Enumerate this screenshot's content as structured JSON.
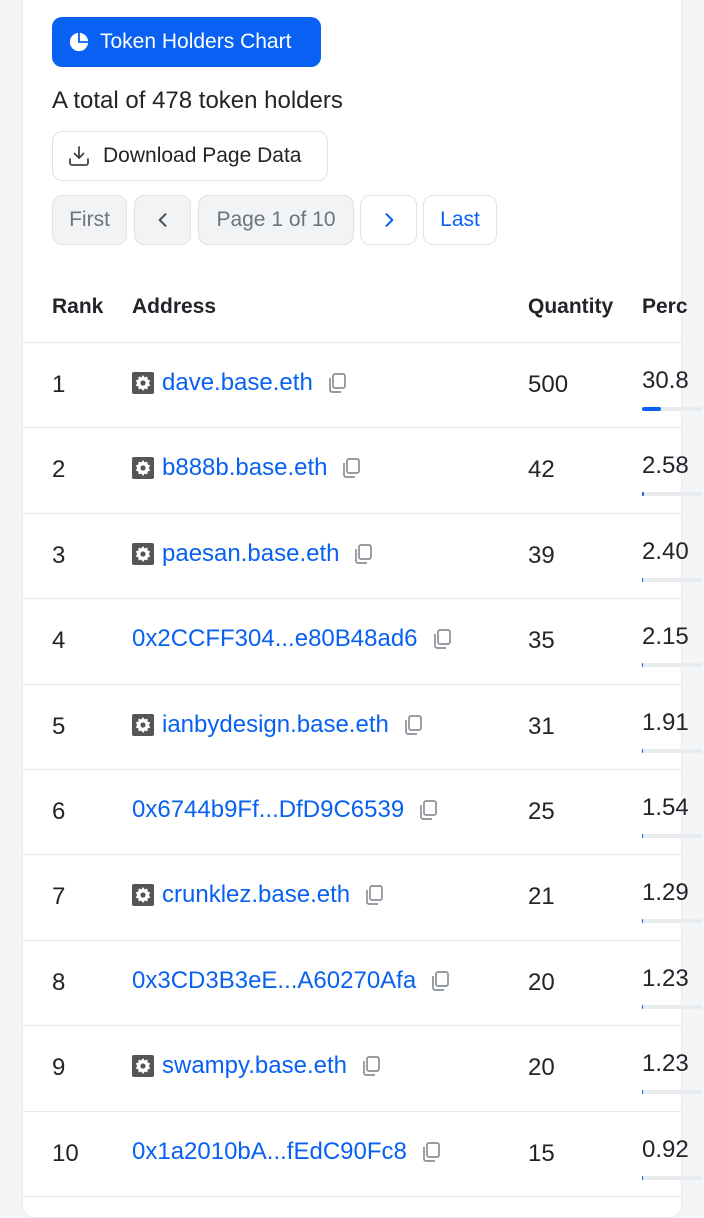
{
  "header": {
    "chart_button_label": "Token Holders Chart",
    "total_text": "A total of 478 token holders",
    "download_label": "Download Page Data"
  },
  "pagination": {
    "first": "First",
    "page_info": "Page 1 of 10",
    "last": "Last"
  },
  "table": {
    "columns": [
      "Rank",
      "Address",
      "Quantity",
      "Perc"
    ],
    "rows": [
      {
        "rank": "1",
        "address": "dave.base.eth",
        "ens": true,
        "quantity": "500",
        "percent": "30.8",
        "fill": 0.308
      },
      {
        "rank": "2",
        "address": "b888b.base.eth",
        "ens": true,
        "quantity": "42",
        "percent": "2.58",
        "fill": 0.0258
      },
      {
        "rank": "3",
        "address": "paesan.base.eth",
        "ens": true,
        "quantity": "39",
        "percent": "2.40",
        "fill": 0.024
      },
      {
        "rank": "4",
        "address": "0x2CCFF304...e80B48ad6",
        "ens": false,
        "quantity": "35",
        "percent": "2.15",
        "fill": 0.0215
      },
      {
        "rank": "5",
        "address": "ianbydesign.base.eth",
        "ens": true,
        "quantity": "31",
        "percent": "1.91",
        "fill": 0.0191
      },
      {
        "rank": "6",
        "address": "0x6744b9Ff...DfD9C6539",
        "ens": false,
        "quantity": "25",
        "percent": "1.54",
        "fill": 0.0154
      },
      {
        "rank": "7",
        "address": "crunklez.base.eth",
        "ens": true,
        "quantity": "21",
        "percent": "1.29",
        "fill": 0.0129
      },
      {
        "rank": "8",
        "address": "0x3CD3B3eE...A60270Afa",
        "ens": false,
        "quantity": "20",
        "percent": "1.23",
        "fill": 0.0123
      },
      {
        "rank": "9",
        "address": "swampy.base.eth",
        "ens": true,
        "quantity": "20",
        "percent": "1.23",
        "fill": 0.0123
      },
      {
        "rank": "10",
        "address": "0x1a2010bA...fEdC90Fc8",
        "ens": false,
        "quantity": "15",
        "percent": "0.92",
        "fill": 0.0092
      }
    ]
  },
  "colors": {
    "accent": "#0861f2",
    "text": "#212529",
    "muted": "#6c757d",
    "border": "#e7eaf3"
  },
  "icons": {
    "chart": "pie-chart-icon",
    "download": "download-icon",
    "prev": "chevron-left-icon",
    "next": "chevron-right-icon",
    "copy": "copy-icon",
    "ens": "base-name-icon"
  }
}
